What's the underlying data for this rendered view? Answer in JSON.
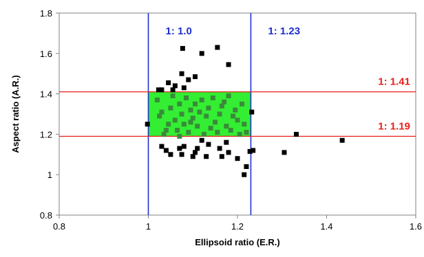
{
  "chart_data": {
    "type": "scatter",
    "title": "",
    "xlabel": "Ellipsoid ratio (E.R.)",
    "ylabel": "Aspect ratio (A.R.)",
    "xlim": [
      0.8,
      1.6
    ],
    "ylim": [
      0.8,
      1.8
    ],
    "xticks": [
      "0.8",
      "1",
      "1.2",
      "1.4",
      "1.6"
    ],
    "yticks": [
      "0.8",
      "1",
      "1.2",
      "1.4",
      "1.6",
      "1.8"
    ],
    "grid": false,
    "legend": "none",
    "colors": {
      "points_outside": "#000000",
      "points_inside": "#3a8a3a",
      "region_fill": "#33ee33",
      "vertical_lines": "#1f2fd0",
      "horizontal_lines": "#e8201a"
    },
    "region": {
      "x": [
        1.0,
        1.23
      ],
      "y": [
        1.19,
        1.41
      ]
    },
    "vertical_lines": [
      {
        "x": 1.0,
        "label": "1: 1.0"
      },
      {
        "x": 1.23,
        "label": "1: 1.23"
      }
    ],
    "horizontal_lines": [
      {
        "y": 1.41,
        "label": "1: 1.41"
      },
      {
        "y": 1.19,
        "label": "1: 1.19"
      }
    ],
    "points": [
      [
        0.998,
        1.25
      ],
      [
        1.023,
        1.42
      ],
      [
        1.03,
        1.42
      ],
      [
        1.045,
        1.455
      ],
      [
        1.06,
        1.44
      ],
      [
        1.055,
        1.42
      ],
      [
        1.075,
        1.5
      ],
      [
        1.077,
        1.625
      ],
      [
        1.08,
        1.43
      ],
      [
        1.09,
        1.47
      ],
      [
        1.105,
        1.485
      ],
      [
        1.12,
        1.6
      ],
      [
        1.155,
        1.63
      ],
      [
        1.18,
        1.545
      ],
      [
        1.03,
        1.14
      ],
      [
        1.04,
        1.12
      ],
      [
        1.05,
        1.1
      ],
      [
        1.07,
        1.13
      ],
      [
        1.075,
        1.1
      ],
      [
        1.08,
        1.14
      ],
      [
        1.1,
        1.09
      ],
      [
        1.105,
        1.11
      ],
      [
        1.11,
        1.13
      ],
      [
        1.12,
        1.17
      ],
      [
        1.13,
        1.09
      ],
      [
        1.135,
        1.15
      ],
      [
        1.16,
        1.13
      ],
      [
        1.165,
        1.09
      ],
      [
        1.175,
        1.16
      ],
      [
        1.18,
        1.11
      ],
      [
        1.2,
        1.08
      ],
      [
        1.215,
        1.0
      ],
      [
        1.22,
        1.04
      ],
      [
        1.228,
        1.115
      ],
      [
        1.235,
        1.12
      ],
      [
        1.232,
        1.31
      ],
      [
        1.305,
        1.11
      ],
      [
        1.332,
        1.2
      ],
      [
        1.435,
        1.17
      ],
      [
        1.07,
        1.19
      ],
      [
        1.02,
        1.37
      ],
      [
        1.03,
        1.31
      ],
      [
        1.035,
        1.2
      ],
      [
        1.04,
        1.22
      ],
      [
        1.05,
        1.33
      ],
      [
        1.055,
        1.39
      ],
      [
        1.06,
        1.27
      ],
      [
        1.065,
        1.22
      ],
      [
        1.07,
        1.35
      ],
      [
        1.075,
        1.3
      ],
      [
        1.08,
        1.25
      ],
      [
        1.085,
        1.38
      ],
      [
        1.09,
        1.21
      ],
      [
        1.095,
        1.32
      ],
      [
        1.1,
        1.28
      ],
      [
        1.105,
        1.35
      ],
      [
        1.11,
        1.24
      ],
      [
        1.115,
        1.31
      ],
      [
        1.12,
        1.37
      ],
      [
        1.125,
        1.2
      ],
      [
        1.13,
        1.29
      ],
      [
        1.135,
        1.33
      ],
      [
        1.14,
        1.23
      ],
      [
        1.145,
        1.38
      ],
      [
        1.15,
        1.26
      ],
      [
        1.155,
        1.21
      ],
      [
        1.16,
        1.3
      ],
      [
        1.165,
        1.34
      ],
      [
        1.17,
        1.36
      ],
      [
        1.175,
        1.24
      ],
      [
        1.18,
        1.39
      ],
      [
        1.185,
        1.22
      ],
      [
        1.19,
        1.29
      ],
      [
        1.195,
        1.32
      ],
      [
        1.2,
        1.27
      ],
      [
        1.205,
        1.2
      ],
      [
        1.21,
        1.35
      ],
      [
        1.215,
        1.25
      ],
      [
        1.22,
        1.21
      ],
      [
        1.025,
        1.29
      ],
      [
        1.045,
        1.25
      ],
      [
        1.095,
        1.26
      ]
    ]
  }
}
